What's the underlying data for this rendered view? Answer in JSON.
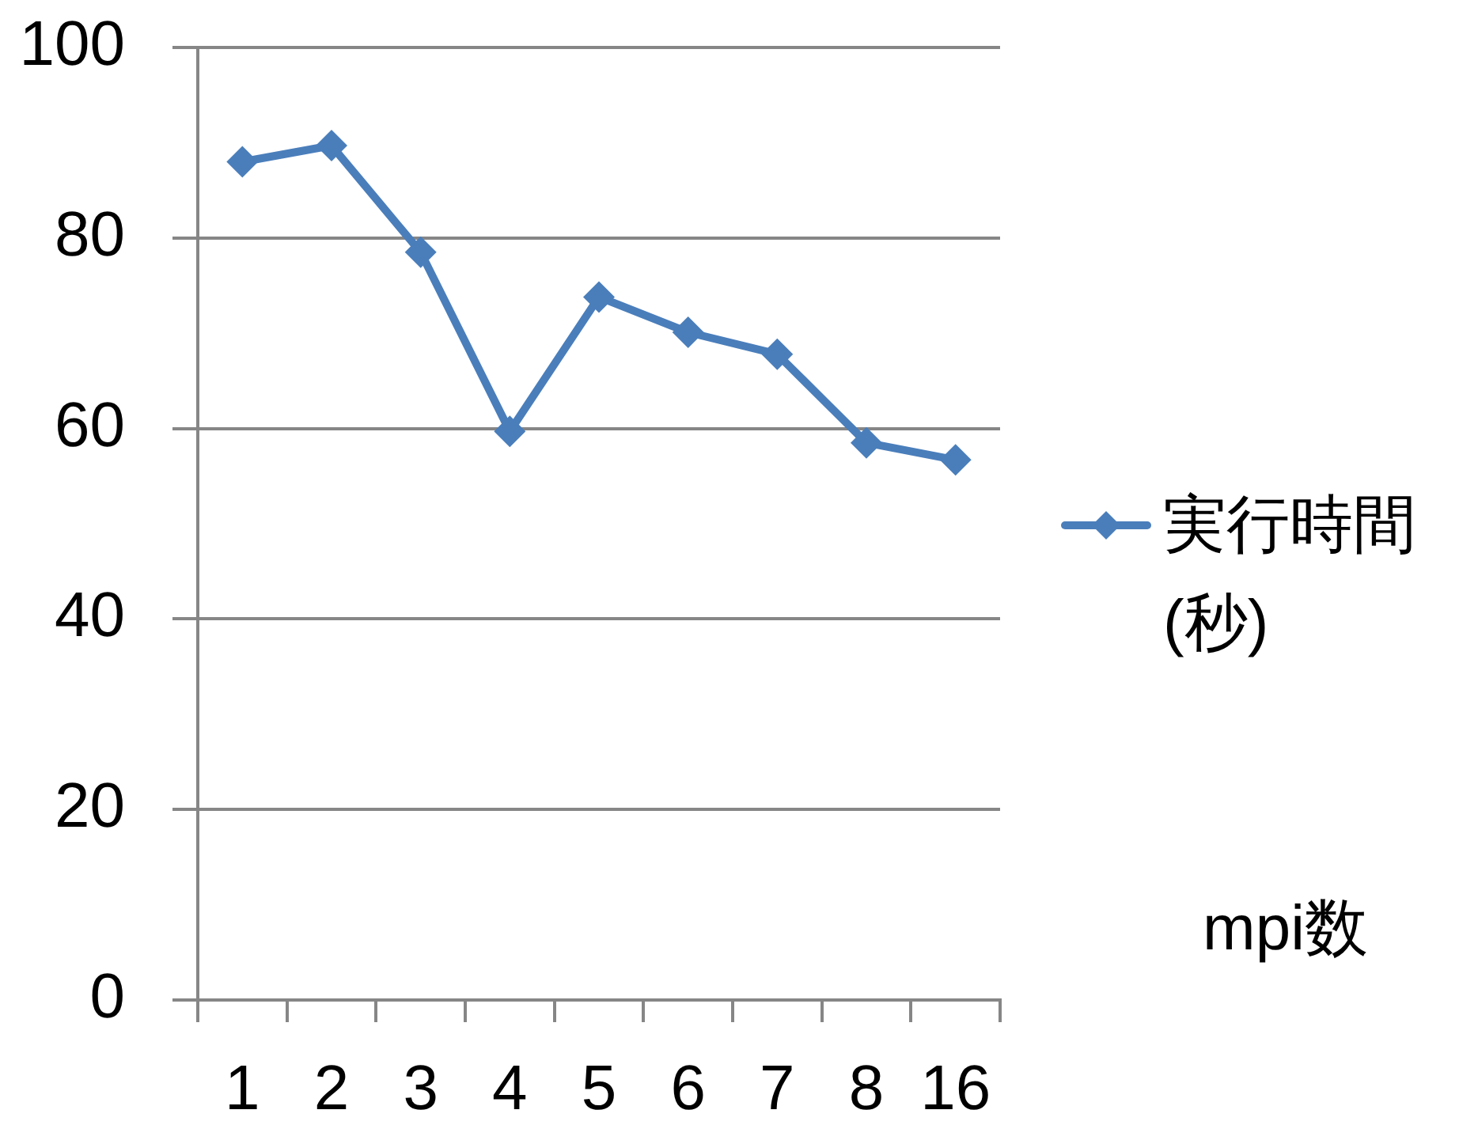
{
  "chart_data": {
    "type": "line",
    "categories": [
      "1",
      "2",
      "3",
      "4",
      "5",
      "6",
      "7",
      "8",
      "16"
    ],
    "xlabel": "mpi数",
    "series": [
      {
        "name": "実行時間(秒)",
        "color": "#4a7ebb",
        "values": [
          88,
          89.7,
          78.5,
          59.7,
          73.8,
          70.1,
          67.8,
          58.5,
          56.7
        ]
      }
    ],
    "ylim": [
      0,
      100
    ],
    "yticks": [
      0,
      20,
      40,
      60,
      80,
      100
    ],
    "grid": "y",
    "legend": "right",
    "marker": "diamond",
    "line_style": "solid"
  }
}
